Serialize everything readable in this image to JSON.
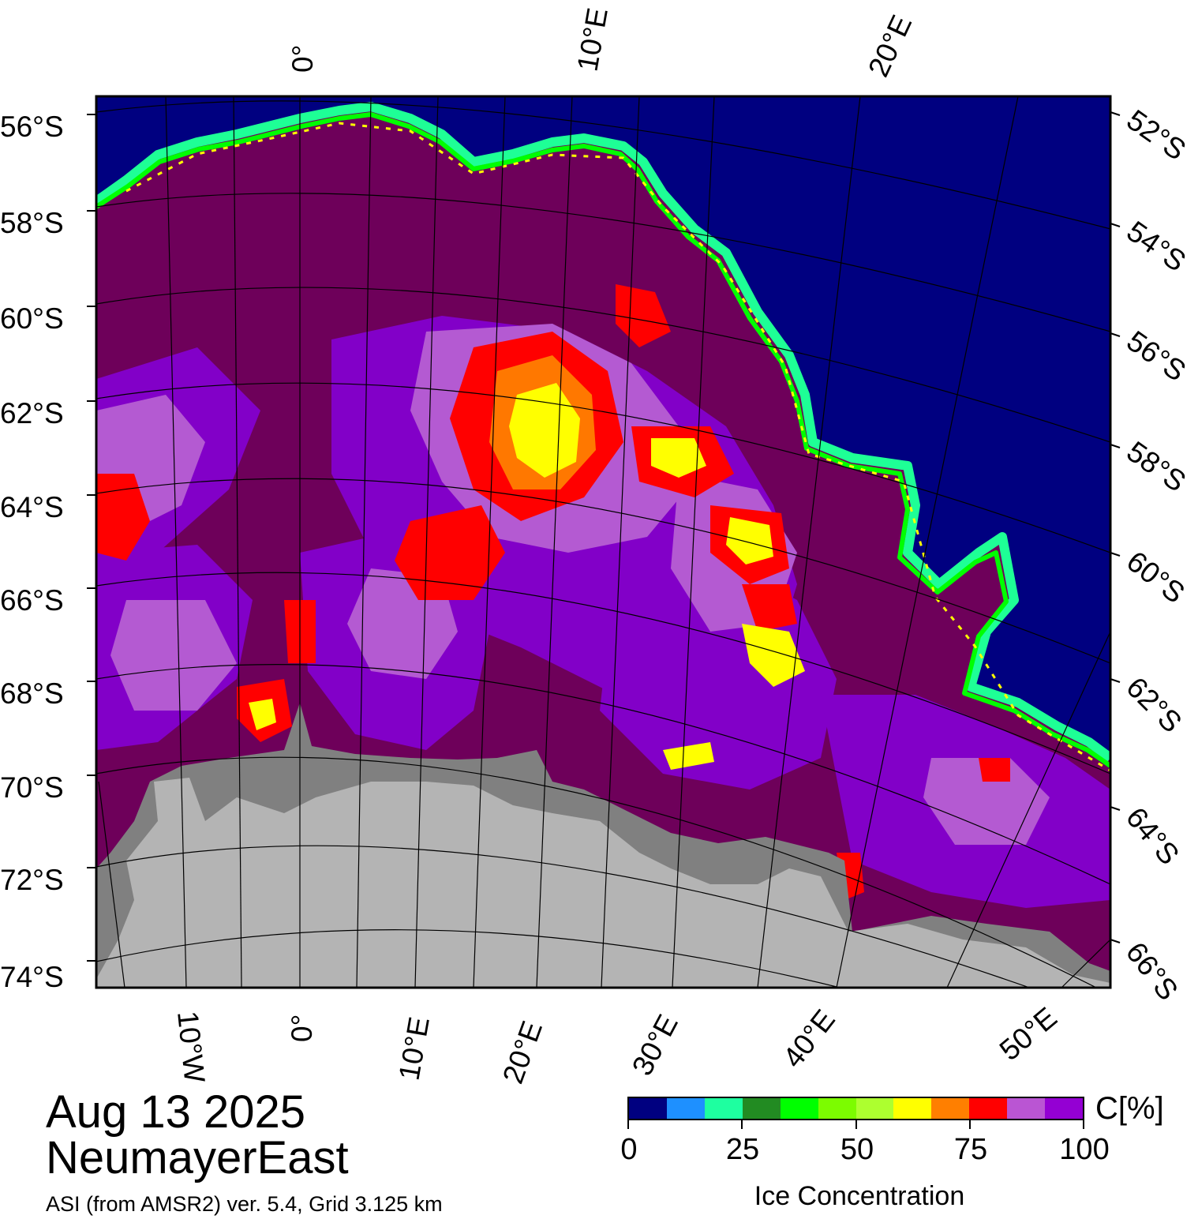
{
  "title": {
    "date": "Aug 13 2025",
    "region": "NeumayerEast",
    "source": "ASI (from AMSR2) ver. 5.4,  Grid 3.125 km"
  },
  "map": {
    "top_lon_labels": [
      "0°",
      "10°E",
      "20°E"
    ],
    "bottom_lon_labels": [
      "10°W",
      "0°",
      "10°E",
      "20°E",
      "30°E",
      "40°E",
      "50°E"
    ],
    "left_lat_labels": [
      "56°S",
      "58°S",
      "60°S",
      "62°S",
      "64°S",
      "66°S",
      "68°S",
      "70°S",
      "72°S",
      "74°S"
    ],
    "right_lat_labels": [
      "52°S",
      "54°S",
      "56°S",
      "58°S",
      "60°S",
      "62°S",
      "64°S",
      "66°S"
    ],
    "colors": {
      "open_ocean": "#000080",
      "land": "#b4b4b4",
      "ice_shelf": "#808080",
      "pack_ice_full": "#6e005a",
      "pack_ice_high": "#8200c8",
      "pack_ice_mid": "#b45ad2",
      "low_conc_yellow": "#ffff00",
      "low_conc_orange": "#ff7800",
      "low_conc_red": "#ff0000",
      "edge_green": "#00ff00",
      "edge_lightgreen": "#a0f032",
      "edge_cyan": "#1eff96"
    }
  },
  "colorbar": {
    "unit_label": "C[%]",
    "axis_label": "Ice Concentration",
    "ticks": [
      "0",
      "25",
      "50",
      "75",
      "100"
    ],
    "tick_values": [
      0,
      25,
      50,
      75,
      100
    ],
    "segment_colors": [
      "#000080",
      "#1e90ff",
      "#1effa0",
      "#228b22",
      "#00ff00",
      "#7cfc00",
      "#adff2f",
      "#ffff00",
      "#ff7f00",
      "#ff0000",
      "#ba55d3",
      "#9400d3"
    ]
  }
}
